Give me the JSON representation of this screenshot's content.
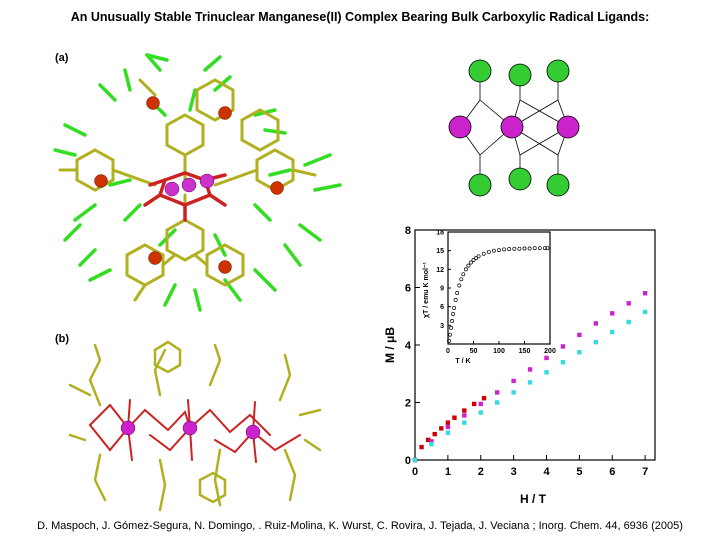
{
  "title": "An Unusually Stable Trinuclear Manganese(II) Complex Bearing Bulk Carboxylic Radical Ligands:",
  "panel_a_label": "(a)",
  "panel_b_label": "(b)",
  "citation": "D. Maspoch, J. Gómez-Segura, N. Domingo, . Ruiz-Molina, K. Wurst, C. Rovira, J. Tejada, J. Veciana ; Inorg. Chem. 44, 6936 (2005)",
  "colors": {
    "radical_node": "#33cc33",
    "mn_node": "#cc33cc",
    "carbon": "#b0b020",
    "hydrogen": "#33dd22",
    "oxygen": "#cc2222",
    "chlorine": "#cc3300",
    "series_red": "#cc0000",
    "series_magenta": "#cc22cc",
    "series_cyan": "#33dddd"
  },
  "chart_data": [
    {
      "type": "scatter",
      "xlabel": "H / T",
      "ylabel": "M / μB",
      "xlim": [
        0,
        7.3
      ],
      "ylim": [
        0,
        8
      ],
      "xticks": [
        0,
        1,
        2,
        3,
        4,
        5,
        6,
        7
      ],
      "yticks": [
        0,
        2,
        4,
        6,
        8
      ],
      "series": [
        {
          "color": "#cc0000",
          "x": [
            0,
            0.2,
            0.4,
            0.6,
            0.8,
            1.0,
            1.2,
            1.5,
            1.8,
            2.1
          ],
          "y": [
            0,
            0.45,
            0.7,
            0.9,
            1.1,
            1.3,
            1.47,
            1.72,
            1.95,
            2.15
          ]
        },
        {
          "color": "#cc22cc",
          "x": [
            0,
            0.5,
            1,
            1.5,
            2,
            2.5,
            3,
            3.5,
            4,
            4.5,
            5,
            5.5,
            6,
            6.5,
            7
          ],
          "y": [
            0,
            0.65,
            1.15,
            1.55,
            1.95,
            2.35,
            2.75,
            3.15,
            3.55,
            3.95,
            4.35,
            4.75,
            5.1,
            5.45,
            5.8
          ]
        },
        {
          "color": "#33dddd",
          "x": [
            0,
            0.5,
            1,
            1.5,
            2,
            2.5,
            3,
            3.5,
            4,
            4.5,
            5,
            5.5,
            6,
            6.5,
            7
          ],
          "y": [
            0,
            0.55,
            0.95,
            1.3,
            1.65,
            2.0,
            2.35,
            2.7,
            3.05,
            3.4,
            3.75,
            4.1,
            4.45,
            4.8,
            5.15
          ]
        }
      ]
    },
    {
      "type": "scatter",
      "xlabel": "T / K",
      "ylabel": "χT / emu K mol⁻¹",
      "xlim": [
        0,
        200
      ],
      "ylim": [
        0,
        18
      ],
      "xticks": [
        0,
        50,
        100,
        150,
        200
      ],
      "yticks": [
        3,
        6,
        9,
        12,
        15,
        18
      ],
      "series": [
        {
          "color": "#000000",
          "x": [
            2,
            4,
            6,
            8,
            10,
            12,
            15,
            18,
            22,
            26,
            30,
            35,
            40,
            45,
            50,
            55,
            60,
            70,
            80,
            90,
            100,
            110,
            120,
            130,
            140,
            150,
            160,
            170,
            180,
            190,
            195
          ],
          "y": [
            0.5,
            1.5,
            2.6,
            3.7,
            4.8,
            5.8,
            7.1,
            8.2,
            9.4,
            10.4,
            11.2,
            12.0,
            12.6,
            13.1,
            13.5,
            13.8,
            14.1,
            14.5,
            14.8,
            15.0,
            15.1,
            15.2,
            15.25,
            15.3,
            15.3,
            15.35,
            15.35,
            15.4,
            15.4,
            15.4,
            15.4
          ]
        }
      ]
    }
  ]
}
